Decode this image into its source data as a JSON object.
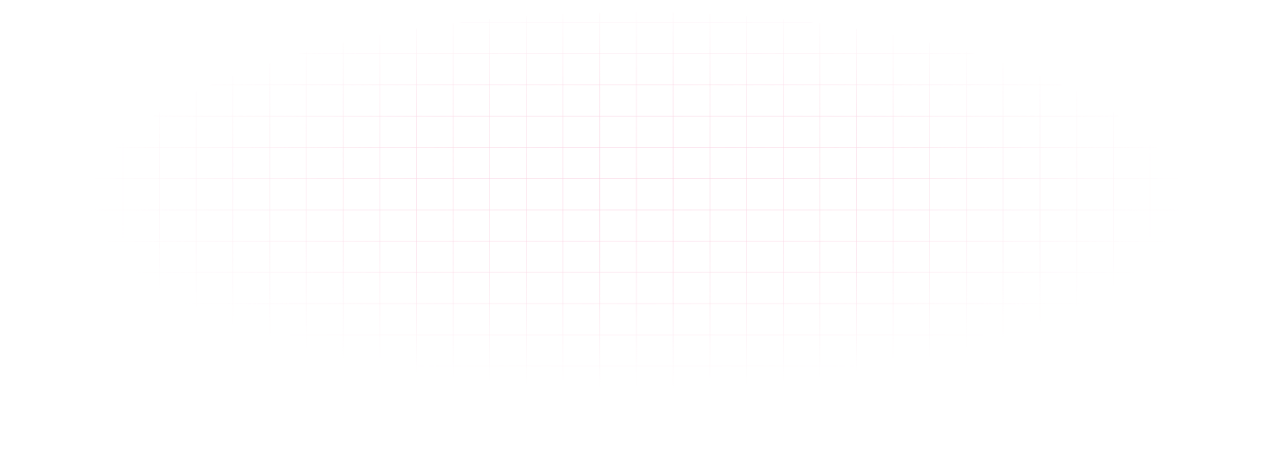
{
  "background": {
    "pattern": "grid",
    "line_color": "#f9c6da",
    "base_color": "#ffffff"
  }
}
